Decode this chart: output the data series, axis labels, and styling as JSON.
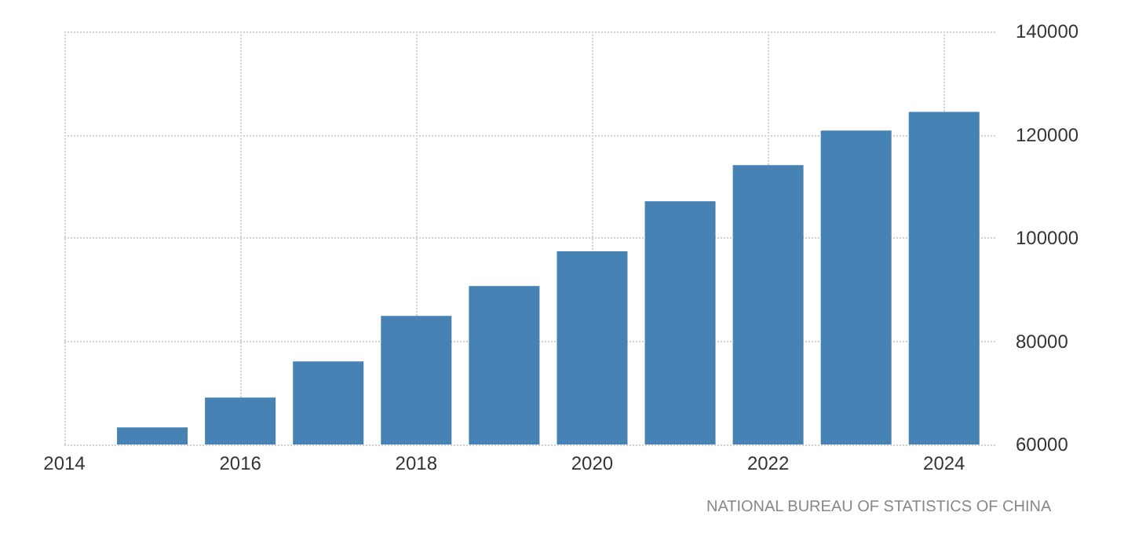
{
  "chart_data": {
    "type": "bar",
    "x": [
      2015,
      2016,
      2017,
      2018,
      2019,
      2020,
      2021,
      2022,
      2023,
      2024
    ],
    "values": [
      63300,
      69100,
      76100,
      84900,
      90700,
      97400,
      107100,
      114100,
      120800,
      124400
    ],
    "color": "#4682b4",
    "xlim": [
      2014,
      2024.6
    ],
    "xticks": [
      2014,
      2016,
      2018,
      2020,
      2022,
      2024
    ],
    "ylim": [
      60000,
      140000
    ],
    "yticks": [
      60000,
      80000,
      100000,
      120000,
      140000
    ],
    "grid": true,
    "annotations": [
      "NATIONAL BUREAU OF STATISTICS OF CHINA"
    ]
  }
}
